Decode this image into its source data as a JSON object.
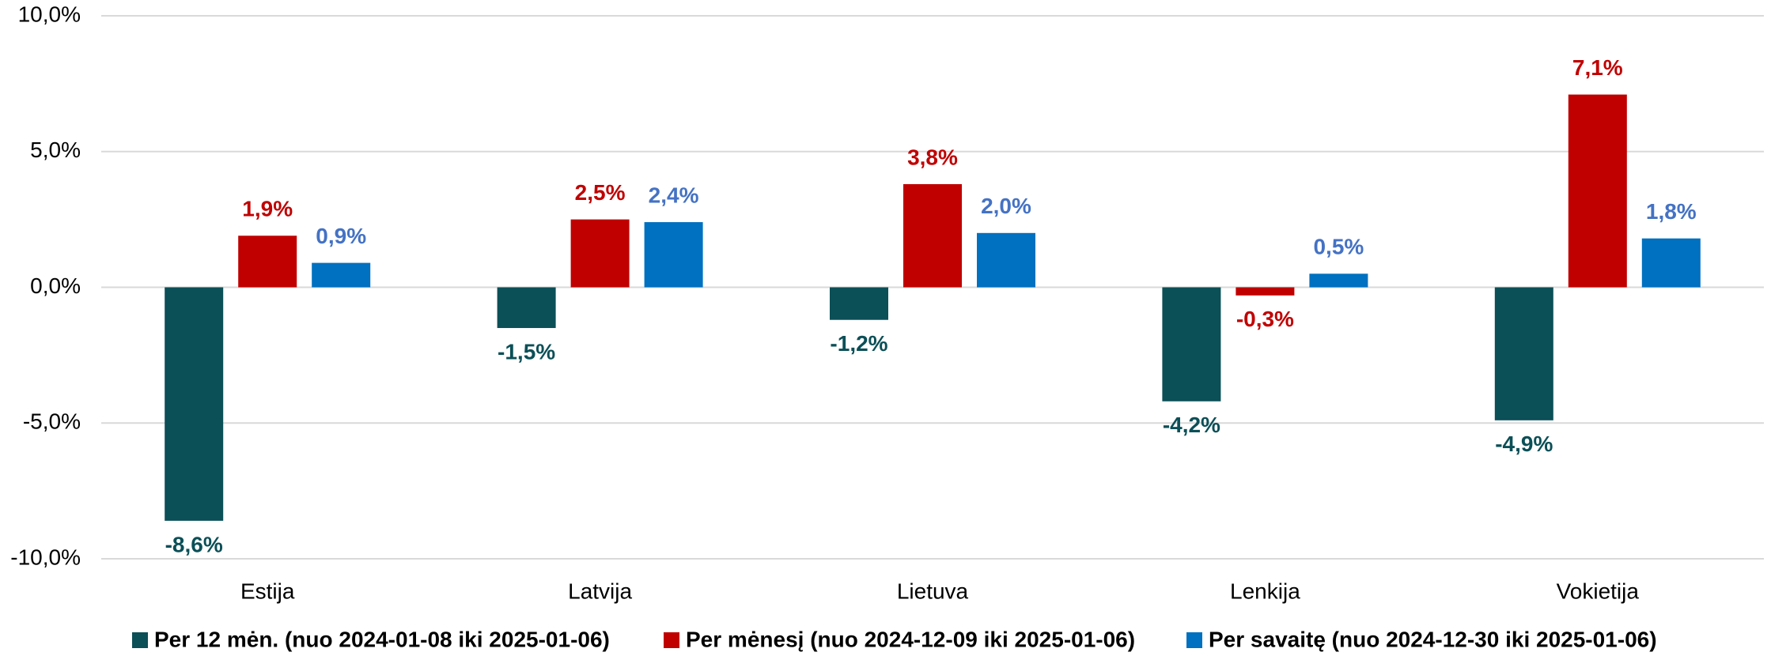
{
  "chart_data": {
    "type": "bar",
    "categories": [
      "Estija",
      "Latvija",
      "Lietuva",
      "Lenkija",
      "Vokietija"
    ],
    "series": [
      {
        "name": "Per 12 mėn. (nuo 2024-01-08 iki 2025-01-06)",
        "color": "#0b4f57",
        "label_color": "#0b4f57",
        "values": [
          -8.6,
          -1.5,
          -1.2,
          -4.2,
          -4.9
        ],
        "value_labels": [
          "-8,6%",
          "-1,5%",
          "-1,2%",
          "-4,2%",
          "-4,9%"
        ]
      },
      {
        "name": "Per mėnesį (nuo 2024-12-09 iki 2025-01-06)",
        "color": "#c00000",
        "label_color": "#c00000",
        "values": [
          1.9,
          2.5,
          3.8,
          -0.3,
          7.1
        ],
        "value_labels": [
          "1,9%",
          "2,5%",
          "3,8%",
          "-0,3%",
          "7,1%"
        ]
      },
      {
        "name": "Per savaitę (nuo 2024-12-30 iki 2025-01-06)",
        "color": "#0070c0",
        "label_color": "#4472c4",
        "values": [
          0.9,
          2.4,
          2.0,
          0.5,
          1.8
        ],
        "value_labels": [
          "0,9%",
          "2,4%",
          "2,0%",
          "0,5%",
          "1,8%"
        ]
      }
    ],
    "ylim": [
      -10,
      10
    ],
    "yticks": [
      {
        "value": -10,
        "label": "-10,0%"
      },
      {
        "value": -5,
        "label": "-5,0%"
      },
      {
        "value": 0,
        "label": "0,0%"
      },
      {
        "value": 5,
        "label": "5,0%"
      },
      {
        "value": 10,
        "label": "10,0%"
      }
    ],
    "grid": true,
    "legend": "bottom"
  }
}
